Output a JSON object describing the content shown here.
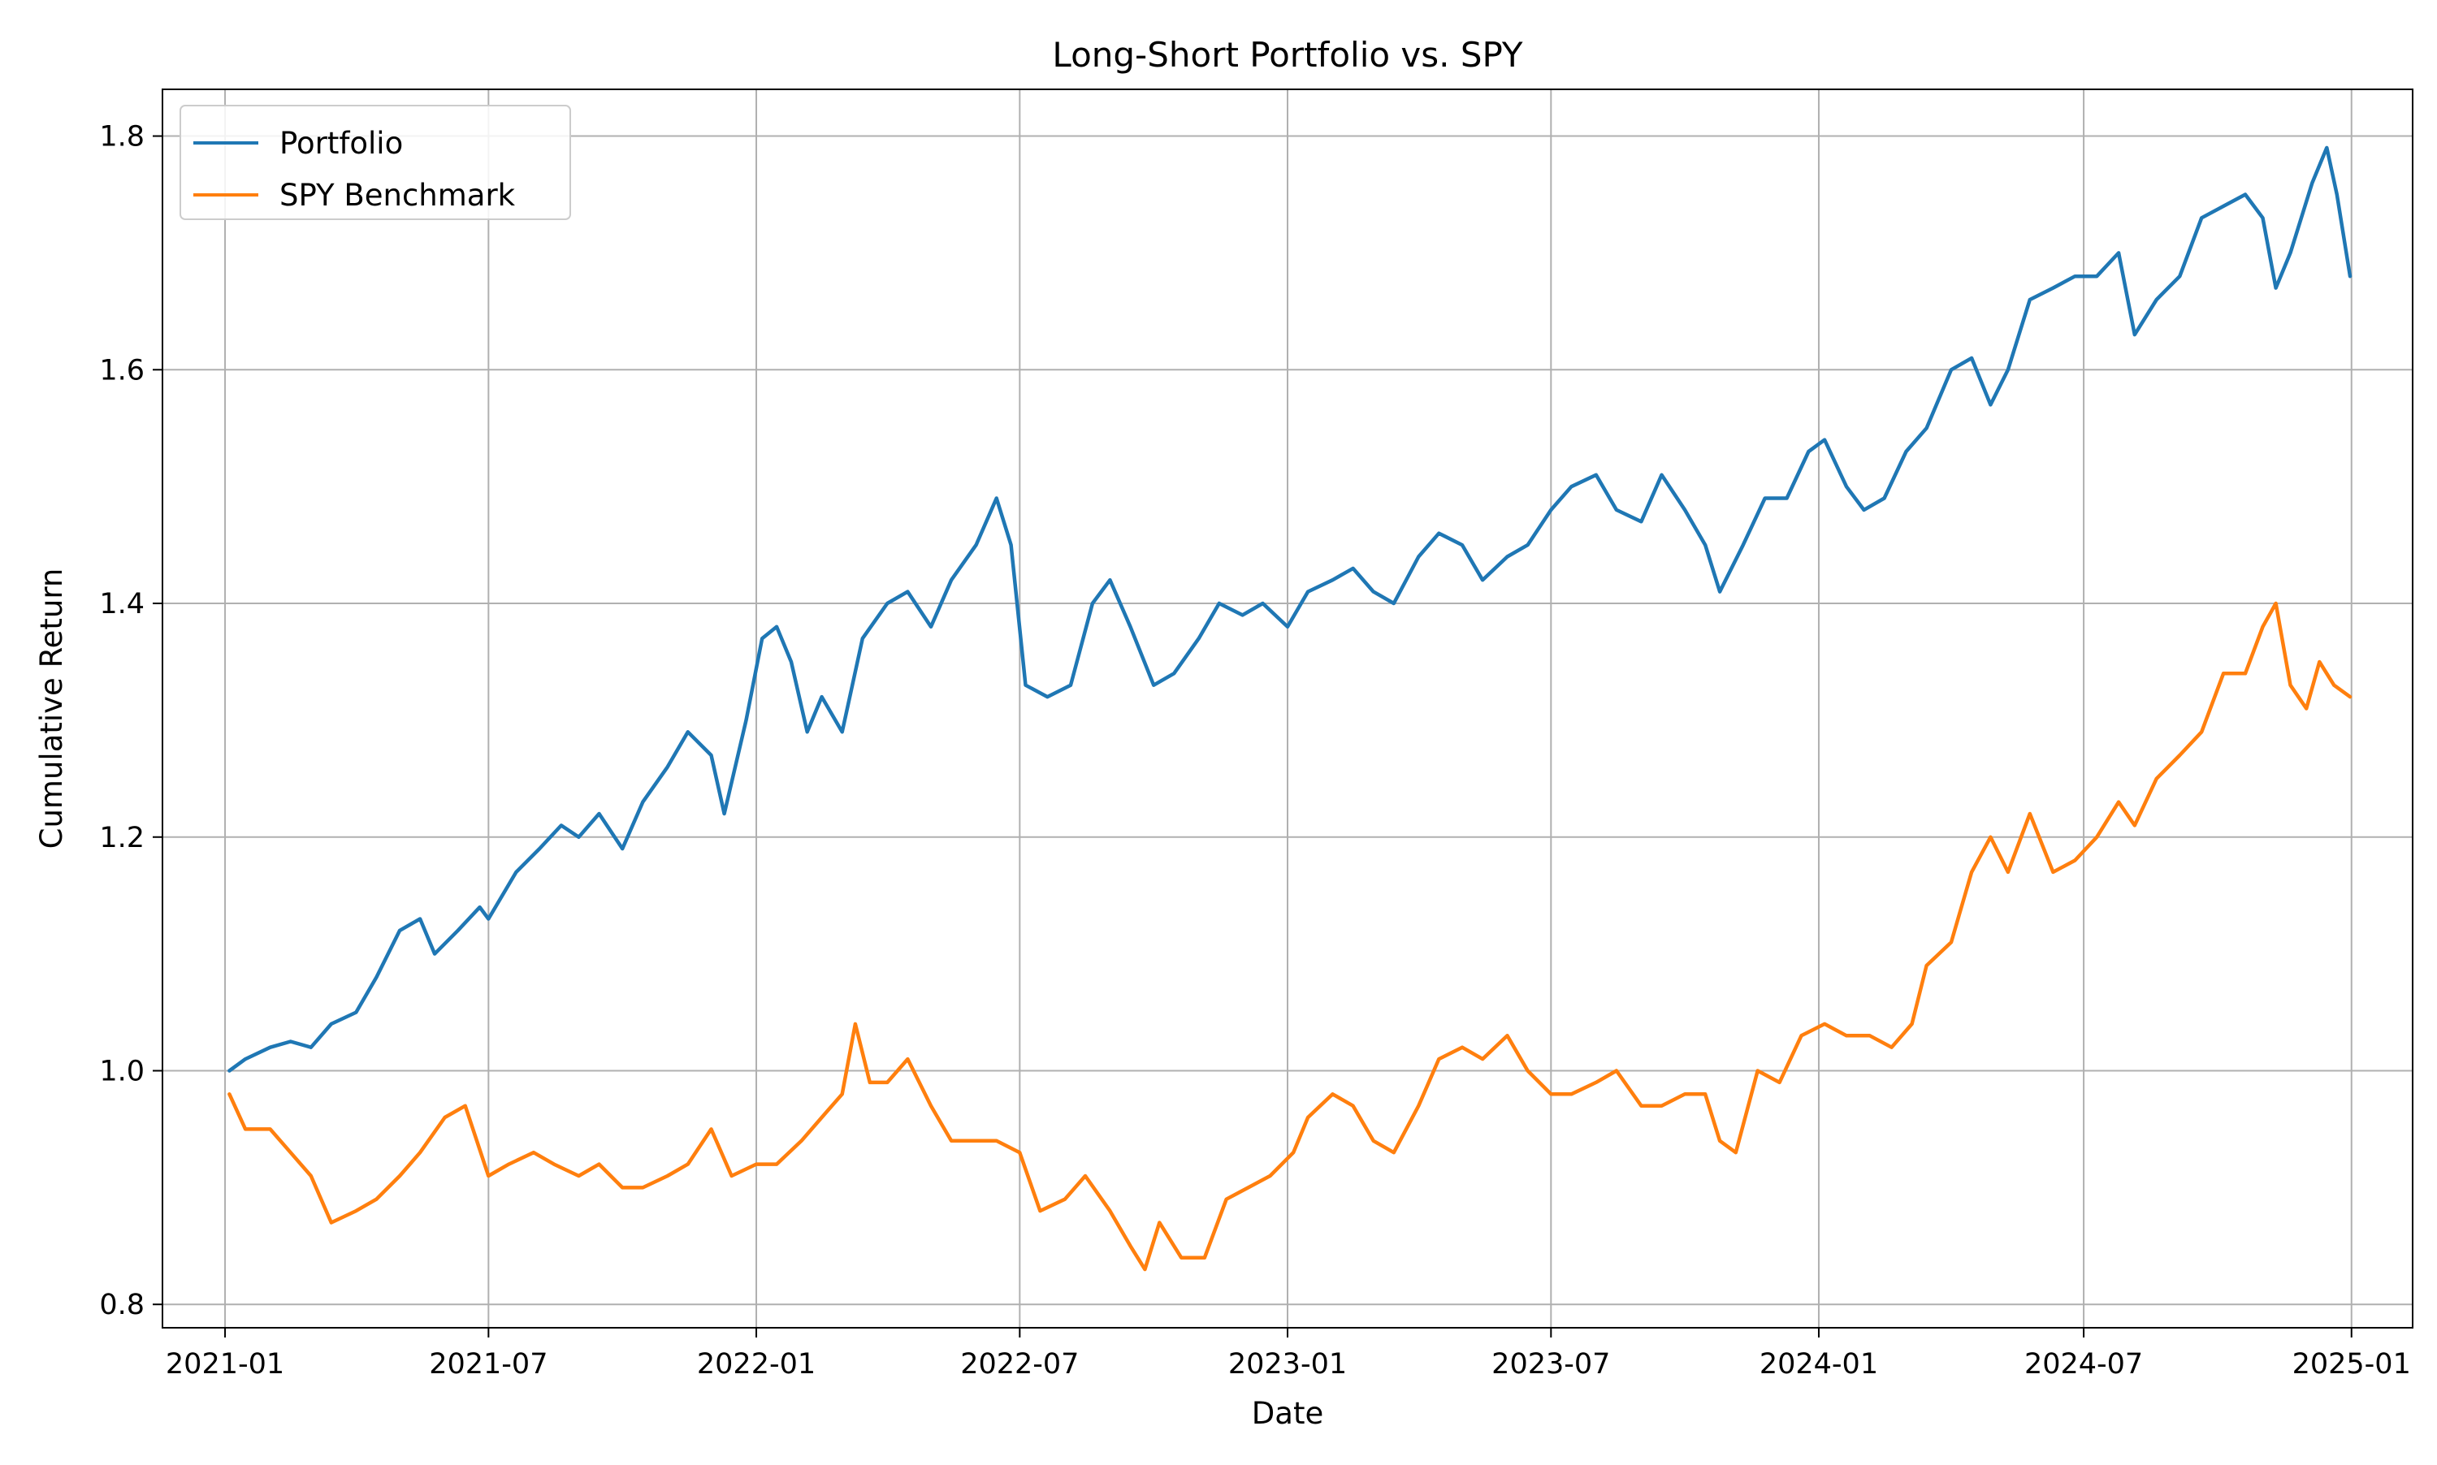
{
  "chart_data": {
    "type": "line",
    "title": "Long-Short Portfolio vs. SPY",
    "xlabel": "Date",
    "ylabel": "Cumulative Return",
    "x_ticks": [
      "2021-01",
      "2021-07",
      "2022-01",
      "2022-07",
      "2023-01",
      "2023-07",
      "2024-01",
      "2024-07",
      "2025-01"
    ],
    "y_ticks": [
      0.8,
      1.0,
      1.2,
      1.4,
      1.6,
      1.8
    ],
    "y_tick_labels": [
      "0.8",
      "1.0",
      "1.2",
      "1.4",
      "1.6",
      "1.8"
    ],
    "xlim": [
      "2020-11-19",
      "2025-02-12"
    ],
    "ylim": [
      0.78,
      1.84
    ],
    "grid": true,
    "legend_position": "top-left",
    "series": [
      {
        "name": "Portfolio",
        "color": "#1f77b4",
        "points": [
          [
            "2021-01-04",
            1.0
          ],
          [
            "2021-01-15",
            1.01
          ],
          [
            "2021-02-01",
            1.02
          ],
          [
            "2021-02-15",
            1.025
          ],
          [
            "2021-03-01",
            1.02
          ],
          [
            "2021-03-15",
            1.04
          ],
          [
            "2021-04-01",
            1.05
          ],
          [
            "2021-04-15",
            1.08
          ],
          [
            "2021-05-01",
            1.12
          ],
          [
            "2021-05-15",
            1.13
          ],
          [
            "2021-05-25",
            1.1
          ],
          [
            "2021-06-10",
            1.12
          ],
          [
            "2021-06-25",
            1.14
          ],
          [
            "2021-07-01",
            1.13
          ],
          [
            "2021-07-20",
            1.17
          ],
          [
            "2021-08-05",
            1.19
          ],
          [
            "2021-08-20",
            1.21
          ],
          [
            "2021-09-01",
            1.2
          ],
          [
            "2021-09-15",
            1.22
          ],
          [
            "2021-10-01",
            1.19
          ],
          [
            "2021-10-15",
            1.23
          ],
          [
            "2021-11-01",
            1.26
          ],
          [
            "2021-11-15",
            1.29
          ],
          [
            "2021-12-01",
            1.27
          ],
          [
            "2021-12-10",
            1.22
          ],
          [
            "2021-12-25",
            1.3
          ],
          [
            "2022-01-05",
            1.37
          ],
          [
            "2022-01-15",
            1.38
          ],
          [
            "2022-01-25",
            1.35
          ],
          [
            "2022-02-05",
            1.29
          ],
          [
            "2022-02-15",
            1.32
          ],
          [
            "2022-03-01",
            1.29
          ],
          [
            "2022-03-15",
            1.37
          ],
          [
            "2022-04-01",
            1.4
          ],
          [
            "2022-04-15",
            1.41
          ],
          [
            "2022-05-01",
            1.38
          ],
          [
            "2022-05-15",
            1.42
          ],
          [
            "2022-06-01",
            1.45
          ],
          [
            "2022-06-15",
            1.49
          ],
          [
            "2022-06-25",
            1.45
          ],
          [
            "2022-07-05",
            1.33
          ],
          [
            "2022-07-20",
            1.32
          ],
          [
            "2022-08-05",
            1.33
          ],
          [
            "2022-08-20",
            1.4
          ],
          [
            "2022-09-01",
            1.42
          ],
          [
            "2022-09-15",
            1.38
          ],
          [
            "2022-10-01",
            1.33
          ],
          [
            "2022-10-15",
            1.34
          ],
          [
            "2022-11-01",
            1.37
          ],
          [
            "2022-11-15",
            1.4
          ],
          [
            "2022-12-01",
            1.39
          ],
          [
            "2022-12-15",
            1.4
          ],
          [
            "2023-01-01",
            1.38
          ],
          [
            "2023-01-15",
            1.41
          ],
          [
            "2023-02-01",
            1.42
          ],
          [
            "2023-02-15",
            1.43
          ],
          [
            "2023-03-01",
            1.41
          ],
          [
            "2023-03-15",
            1.4
          ],
          [
            "2023-04-01",
            1.44
          ],
          [
            "2023-04-15",
            1.46
          ],
          [
            "2023-05-01",
            1.45
          ],
          [
            "2023-05-15",
            1.42
          ],
          [
            "2023-06-01",
            1.44
          ],
          [
            "2023-06-15",
            1.45
          ],
          [
            "2023-07-01",
            1.48
          ],
          [
            "2023-07-15",
            1.5
          ],
          [
            "2023-08-01",
            1.51
          ],
          [
            "2023-08-15",
            1.48
          ],
          [
            "2023-09-01",
            1.47
          ],
          [
            "2023-09-15",
            1.51
          ],
          [
            "2023-10-01",
            1.48
          ],
          [
            "2023-10-15",
            1.45
          ],
          [
            "2023-10-25",
            1.41
          ],
          [
            "2023-11-10",
            1.45
          ],
          [
            "2023-11-25",
            1.49
          ],
          [
            "2023-12-10",
            1.49
          ],
          [
            "2023-12-25",
            1.53
          ],
          [
            "2024-01-05",
            1.54
          ],
          [
            "2024-01-20",
            1.5
          ],
          [
            "2024-02-01",
            1.48
          ],
          [
            "2024-02-15",
            1.49
          ],
          [
            "2024-03-01",
            1.53
          ],
          [
            "2024-03-15",
            1.55
          ],
          [
            "2024-04-01",
            1.6
          ],
          [
            "2024-04-15",
            1.61
          ],
          [
            "2024-04-28",
            1.57
          ],
          [
            "2024-05-10",
            1.6
          ],
          [
            "2024-05-25",
            1.66
          ],
          [
            "2024-06-10",
            1.67
          ],
          [
            "2024-06-25",
            1.68
          ],
          [
            "2024-07-10",
            1.68
          ],
          [
            "2024-07-25",
            1.7
          ],
          [
            "2024-08-05",
            1.63
          ],
          [
            "2024-08-20",
            1.66
          ],
          [
            "2024-09-05",
            1.68
          ],
          [
            "2024-09-20",
            1.73
          ],
          [
            "2024-10-05",
            1.74
          ],
          [
            "2024-10-20",
            1.75
          ],
          [
            "2024-11-01",
            1.73
          ],
          [
            "2024-11-10",
            1.67
          ],
          [
            "2024-11-20",
            1.7
          ],
          [
            "2024-12-05",
            1.76
          ],
          [
            "2024-12-15",
            1.79
          ],
          [
            "2024-12-22",
            1.75
          ],
          [
            "2024-12-31",
            1.68
          ]
        ]
      },
      {
        "name": "SPY Benchmark",
        "color": "#ff7f0e",
        "points": [
          [
            "2021-01-04",
            0.98
          ],
          [
            "2021-01-15",
            0.95
          ],
          [
            "2021-02-01",
            0.95
          ],
          [
            "2021-02-15",
            0.93
          ],
          [
            "2021-03-01",
            0.91
          ],
          [
            "2021-03-15",
            0.87
          ],
          [
            "2021-04-01",
            0.88
          ],
          [
            "2021-04-15",
            0.89
          ],
          [
            "2021-05-01",
            0.91
          ],
          [
            "2021-05-15",
            0.93
          ],
          [
            "2021-06-01",
            0.96
          ],
          [
            "2021-06-15",
            0.97
          ],
          [
            "2021-07-01",
            0.91
          ],
          [
            "2021-07-15",
            0.92
          ],
          [
            "2021-08-01",
            0.93
          ],
          [
            "2021-08-15",
            0.92
          ],
          [
            "2021-09-01",
            0.91
          ],
          [
            "2021-09-15",
            0.92
          ],
          [
            "2021-10-01",
            0.9
          ],
          [
            "2021-10-15",
            0.9
          ],
          [
            "2021-11-01",
            0.91
          ],
          [
            "2021-11-15",
            0.92
          ],
          [
            "2021-12-01",
            0.95
          ],
          [
            "2021-12-15",
            0.91
          ],
          [
            "2022-01-01",
            0.92
          ],
          [
            "2022-01-15",
            0.92
          ],
          [
            "2022-02-01",
            0.94
          ],
          [
            "2022-02-15",
            0.96
          ],
          [
            "2022-03-01",
            0.98
          ],
          [
            "2022-03-10",
            1.04
          ],
          [
            "2022-03-20",
            0.99
          ],
          [
            "2022-04-01",
            0.99
          ],
          [
            "2022-04-15",
            1.01
          ],
          [
            "2022-05-01",
            0.97
          ],
          [
            "2022-05-15",
            0.94
          ],
          [
            "2022-06-01",
            0.94
          ],
          [
            "2022-06-15",
            0.94
          ],
          [
            "2022-07-01",
            0.93
          ],
          [
            "2022-07-15",
            0.88
          ],
          [
            "2022-08-01",
            0.89
          ],
          [
            "2022-08-15",
            0.91
          ],
          [
            "2022-09-01",
            0.88
          ],
          [
            "2022-09-15",
            0.85
          ],
          [
            "2022-09-25",
            0.83
          ],
          [
            "2022-10-05",
            0.87
          ],
          [
            "2022-10-20",
            0.84
          ],
          [
            "2022-11-05",
            0.84
          ],
          [
            "2022-11-20",
            0.89
          ],
          [
            "2022-12-05",
            0.9
          ],
          [
            "2022-12-20",
            0.91
          ],
          [
            "2023-01-05",
            0.93
          ],
          [
            "2023-01-15",
            0.96
          ],
          [
            "2023-02-01",
            0.98
          ],
          [
            "2023-02-15",
            0.97
          ],
          [
            "2023-03-01",
            0.94
          ],
          [
            "2023-03-15",
            0.93
          ],
          [
            "2023-04-01",
            0.97
          ],
          [
            "2023-04-15",
            1.01
          ],
          [
            "2023-05-01",
            1.02
          ],
          [
            "2023-05-15",
            1.01
          ],
          [
            "2023-06-01",
            1.03
          ],
          [
            "2023-06-15",
            1.0
          ],
          [
            "2023-07-01",
            0.98
          ],
          [
            "2023-07-15",
            0.98
          ],
          [
            "2023-08-01",
            0.99
          ],
          [
            "2023-08-15",
            1.0
          ],
          [
            "2023-09-01",
            0.97
          ],
          [
            "2023-09-15",
            0.97
          ],
          [
            "2023-10-01",
            0.98
          ],
          [
            "2023-10-15",
            0.98
          ],
          [
            "2023-10-25",
            0.94
          ],
          [
            "2023-11-05",
            0.93
          ],
          [
            "2023-11-20",
            1.0
          ],
          [
            "2023-12-05",
            0.99
          ],
          [
            "2023-12-20",
            1.03
          ],
          [
            "2024-01-05",
            1.04
          ],
          [
            "2024-01-20",
            1.03
          ],
          [
            "2024-02-05",
            1.03
          ],
          [
            "2024-02-20",
            1.02
          ],
          [
            "2024-03-05",
            1.04
          ],
          [
            "2024-03-15",
            1.09
          ],
          [
            "2024-04-01",
            1.11
          ],
          [
            "2024-04-15",
            1.17
          ],
          [
            "2024-04-28",
            1.2
          ],
          [
            "2024-05-10",
            1.17
          ],
          [
            "2024-05-25",
            1.22
          ],
          [
            "2024-06-10",
            1.17
          ],
          [
            "2024-06-25",
            1.18
          ],
          [
            "2024-07-10",
            1.2
          ],
          [
            "2024-07-25",
            1.23
          ],
          [
            "2024-08-05",
            1.21
          ],
          [
            "2024-08-20",
            1.25
          ],
          [
            "2024-09-05",
            1.27
          ],
          [
            "2024-09-20",
            1.29
          ],
          [
            "2024-10-05",
            1.34
          ],
          [
            "2024-10-20",
            1.34
          ],
          [
            "2024-11-01",
            1.38
          ],
          [
            "2024-11-10",
            1.4
          ],
          [
            "2024-11-20",
            1.33
          ],
          [
            "2024-12-01",
            1.31
          ],
          [
            "2024-12-10",
            1.35
          ],
          [
            "2024-12-20",
            1.33
          ],
          [
            "2024-12-31",
            1.32
          ]
        ]
      }
    ]
  }
}
